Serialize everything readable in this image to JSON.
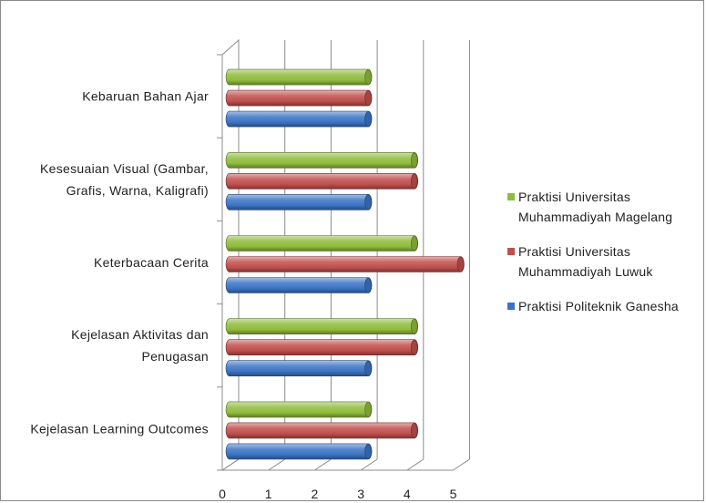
{
  "chart_data": {
    "type": "bar",
    "orientation": "horizontal",
    "style": "3d-cylinder",
    "categories": [
      [
        "Kebaruan Bahan Ajar"
      ],
      [
        "Kesesuaian Visual (Gambar,",
        "Grafis, Warna, Kaligrafi)"
      ],
      [
        "Keterbacaan Cerita"
      ],
      [
        "Kejelasan Aktivitas dan",
        "Penugasan"
      ],
      [
        "Kejelasan Learning Outcomes"
      ]
    ],
    "series": [
      {
        "name": "Praktisi Universitas Muhammadiyah Magelang",
        "color": "#8fbc3d",
        "values": [
          3,
          4,
          4,
          4,
          3
        ]
      },
      {
        "name": "Praktisi Universitas Muhammadiyah Luwuk",
        "color": "#c0504d",
        "values": [
          3,
          4,
          5,
          4,
          4
        ]
      },
      {
        "name": "Praktisi Politeknik Ganesha",
        "color": "#3c74c4",
        "values": [
          3,
          3,
          3,
          3,
          3
        ]
      }
    ],
    "xlim": [
      0,
      5
    ],
    "x_ticks": [
      "0",
      "1",
      "2",
      "3",
      "4",
      "5"
    ],
    "grid": true,
    "legend_position": "right"
  }
}
